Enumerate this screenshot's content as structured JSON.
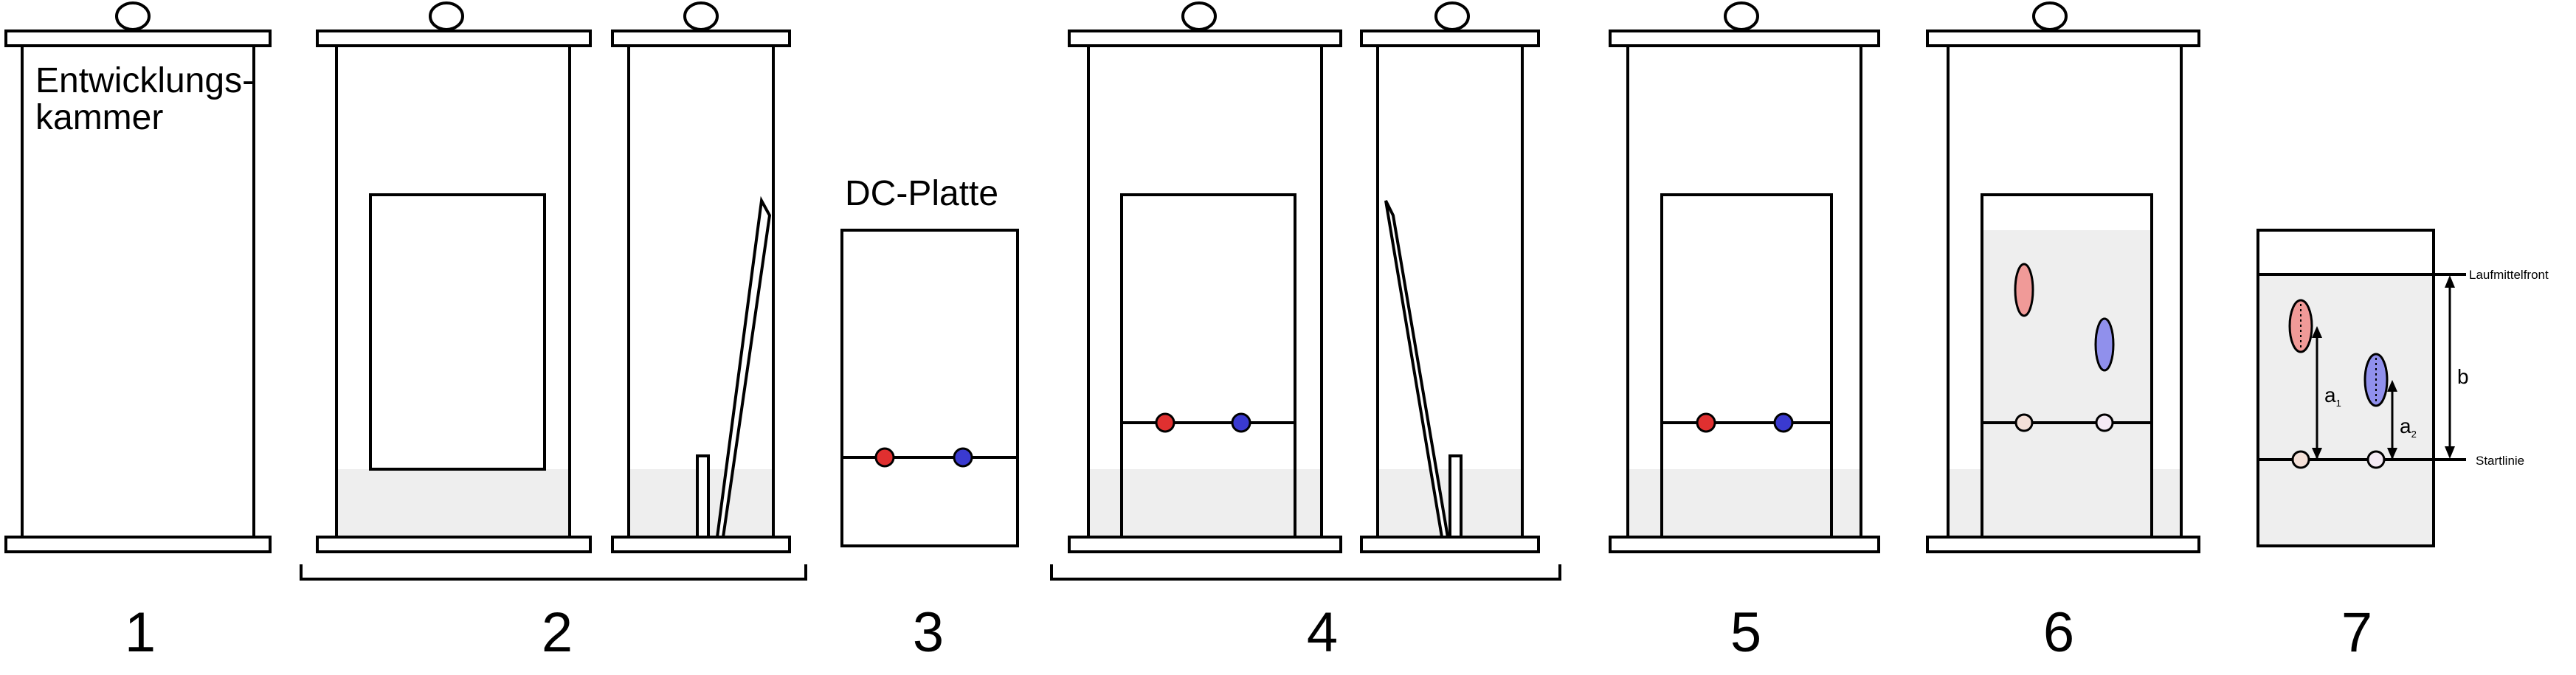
{
  "labels": {
    "chamber": [
      "Entwicklungs-",
      "kammer"
    ],
    "plate": "DC-Platte",
    "solvent_front": "Laufmittelfront",
    "start_line": "Startlinie",
    "distance_b": "b",
    "distance_a1": "a",
    "distance_a1_sub": "1",
    "distance_a2": "a",
    "distance_a2_sub": "2"
  },
  "steps": [
    "1",
    "2",
    "3",
    "4",
    "5",
    "6",
    "7"
  ],
  "colors": {
    "outline": "#000000",
    "solvent": "#eeeeee",
    "red_dot": "#e03030",
    "blue_dot": "#3a3ad0",
    "red_spot": "#f09a98",
    "blue_spot": "#9090ec",
    "faded_dot": "#f4e0d8"
  }
}
